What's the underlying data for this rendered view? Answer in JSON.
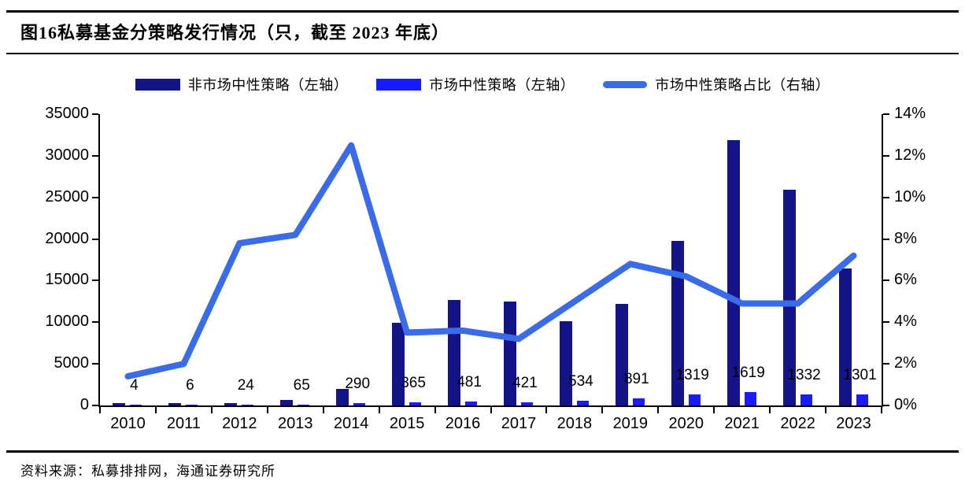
{
  "header": {
    "title": "图16私募基金分策略发行情况（只，截至 2023 年底）"
  },
  "footer": {
    "source": "资料来源：私募排排网，海通证券研究所"
  },
  "legend": {
    "items": [
      {
        "label": "非市场中性策略（左轴）",
        "swatch": "bar-swatch-dark-navy"
      },
      {
        "label": "市场中性策略（左轴）",
        "swatch": "bar-swatch-bright-blue"
      },
      {
        "label": "市场中性策略占比（右轴）",
        "swatch": "line-swatch-royal-blue"
      }
    ]
  },
  "colors": {
    "non_market_neutral": "#141488",
    "market_neutral": "#1A1AFF",
    "ratio_line": "#3A6BE8",
    "axis": "#000000",
    "text": "#000000"
  },
  "chart_data": {
    "type": "bar",
    "subtype": "combo dual-axis bar + line",
    "title": "图16私募基金分策略发行情况（只，截至 2023 年底）",
    "categories": [
      "2010",
      "2011",
      "2012",
      "2013",
      "2014",
      "2015",
      "2016",
      "2017",
      "2018",
      "2019",
      "2020",
      "2021",
      "2022",
      "2023"
    ],
    "series": [
      {
        "name": "非市场中性策略（左轴）",
        "type": "bar",
        "axis": "left",
        "color": "#141488",
        "values": [
          260,
          270,
          280,
          700,
          2000,
          9900,
          12700,
          12500,
          10100,
          12200,
          19800,
          31900,
          25900,
          16500
        ]
      },
      {
        "name": "市场中性策略（左轴）",
        "type": "bar",
        "axis": "left",
        "color": "#1A1AFF",
        "data_labels_shown": true,
        "values": [
          4,
          6,
          24,
          65,
          290,
          365,
          481,
          421,
          534,
          891,
          1319,
          1619,
          1332,
          1301
        ]
      },
      {
        "name": "市场中性策略占比（右轴）",
        "type": "line",
        "axis": "right",
        "unit": "%",
        "color": "#3A6BE8",
        "values": [
          1.4,
          2.0,
          7.8,
          8.2,
          12.5,
          3.5,
          3.6,
          3.2,
          5.0,
          6.8,
          6.2,
          4.9,
          4.9,
          7.2
        ]
      }
    ],
    "left_axis": {
      "min": 0,
      "max": 35000,
      "step": 5000,
      "tick_labels": [
        "0",
        "5000",
        "10000",
        "15000",
        "20000",
        "25000",
        "30000",
        "35000"
      ]
    },
    "right_axis": {
      "min": 0,
      "max": 14,
      "step": 2,
      "tick_labels": [
        "0%",
        "2%",
        "4%",
        "6%",
        "8%",
        "10%",
        "12%",
        "14%"
      ]
    },
    "grid": false,
    "legend_position": "top"
  }
}
